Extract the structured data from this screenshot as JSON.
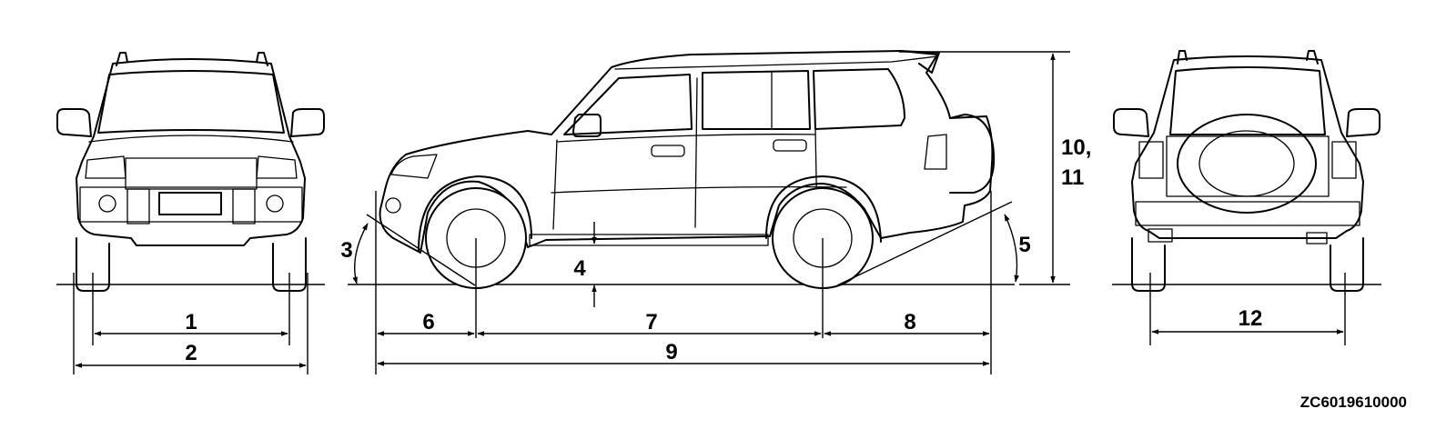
{
  "labels": {
    "d1": "1",
    "d2": "2",
    "d3": "3",
    "d4": "4",
    "d5": "5",
    "d6": "6",
    "d7": "7",
    "d8": "8",
    "d9": "9",
    "d10": "10,",
    "d11": "11",
    "d12": "12"
  },
  "figure_code": "ZC6019610000"
}
